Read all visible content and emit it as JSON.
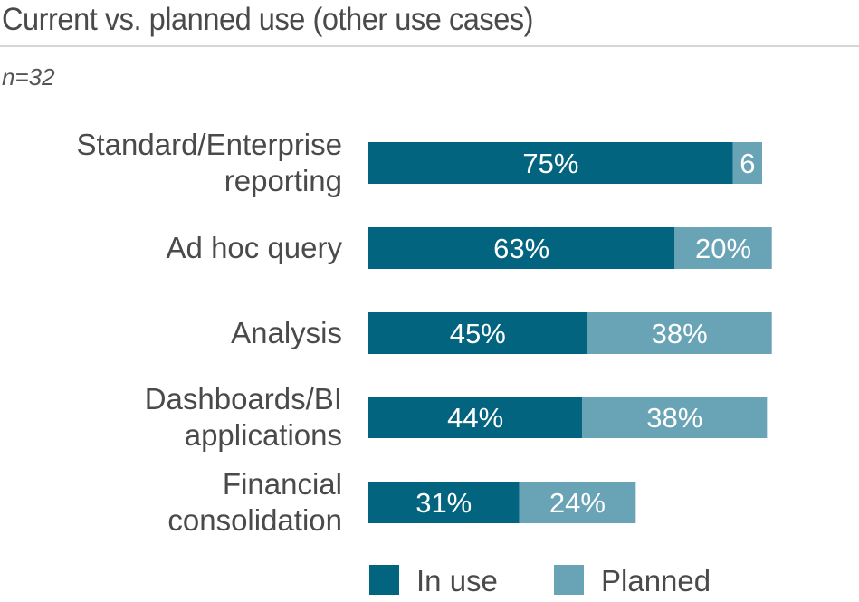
{
  "header": {
    "title": "Current vs. planned use (other use cases)",
    "subtitle": "n=32"
  },
  "chart_data": {
    "type": "bar",
    "orientation": "horizontal",
    "stacked": true,
    "title": "Current vs. planned use (other use cases)",
    "subtitle": "n=32",
    "categories": [
      [
        "Standard/Enterprise",
        "reporting"
      ],
      [
        "Ad hoc query"
      ],
      [
        "Analysis"
      ],
      [
        "Dashboards/BI",
        "applications"
      ],
      [
        "Financial",
        "consolidation"
      ]
    ],
    "series": [
      {
        "name": "In use",
        "color": "#03647f",
        "values": [
          75,
          63,
          45,
          44,
          31
        ],
        "labels": [
          "75%",
          "63%",
          "45%",
          "44%",
          "31%"
        ]
      },
      {
        "name": "Planned",
        "color": "#68a4b6",
        "values": [
          6,
          20,
          38,
          38,
          24
        ],
        "labels": [
          "6",
          "20%",
          "38%",
          "38%",
          "24%"
        ]
      }
    ],
    "xlim": [
      0,
      100
    ],
    "grid": false,
    "legend": "bottom"
  }
}
